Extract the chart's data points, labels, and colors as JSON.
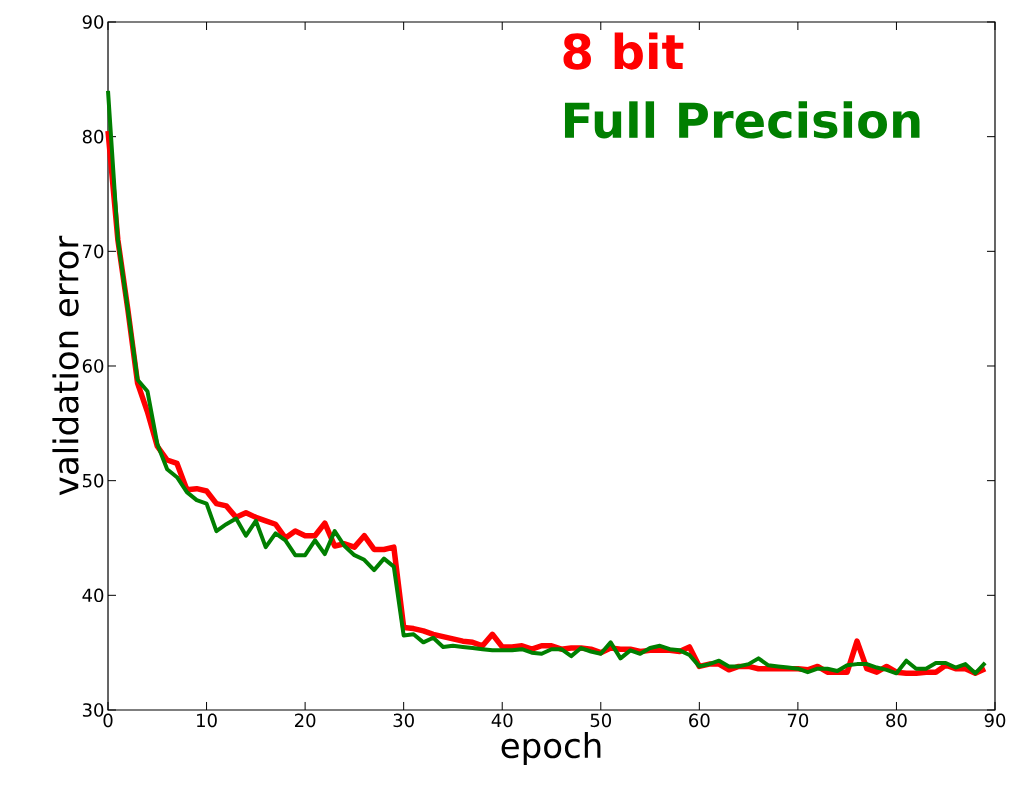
{
  "chart_data": {
    "type": "line",
    "xlabel": "epoch",
    "ylabel": "validation error",
    "xlim": [
      0,
      90
    ],
    "ylim": [
      30,
      90
    ],
    "xticks": [
      0,
      10,
      20,
      30,
      40,
      50,
      60,
      70,
      80,
      90
    ],
    "yticks": [
      30,
      40,
      50,
      60,
      70,
      80,
      90
    ],
    "grid": false,
    "legend": "top right",
    "marker": "none",
    "line_style": "solid",
    "x": [
      0,
      1,
      2,
      3,
      4,
      5,
      6,
      7,
      8,
      9,
      10,
      11,
      12,
      13,
      14,
      15,
      16,
      17,
      18,
      19,
      20,
      21,
      22,
      23,
      24,
      25,
      26,
      27,
      28,
      29,
      30,
      31,
      32,
      33,
      34,
      35,
      36,
      37,
      38,
      39,
      40,
      41,
      42,
      43,
      44,
      45,
      46,
      47,
      48,
      49,
      50,
      51,
      52,
      53,
      54,
      55,
      56,
      57,
      58,
      59,
      60,
      61,
      62,
      63,
      64,
      65,
      66,
      67,
      68,
      69,
      70,
      71,
      72,
      73,
      74,
      75,
      76,
      77,
      78,
      79,
      80,
      81,
      82,
      83,
      84,
      85,
      86,
      87,
      88,
      89
    ],
    "series": [
      {
        "name": "8 bit",
        "color": "#ff0000",
        "values": [
          80.5,
          71,
          65,
          58.5,
          56,
          53,
          51.8,
          51.5,
          49.2,
          49.3,
          49.1,
          48,
          47.8,
          46.8,
          47.2,
          46.8,
          46.5,
          46.2,
          45,
          45.6,
          45.2,
          45.2,
          46.3,
          44.3,
          44.5,
          44.2,
          45.2,
          44,
          44,
          44.2,
          37.2,
          37.1,
          36.9,
          36.6,
          36.4,
          36.2,
          36,
          35.9,
          35.6,
          36.6,
          35.5,
          35.5,
          35.6,
          35.3,
          35.6,
          35.6,
          35.3,
          35.4,
          35.4,
          35.3,
          35,
          35.4,
          35.3,
          35.3,
          35.1,
          35.2,
          35.2,
          35.2,
          35.1,
          35.5,
          33.8,
          34,
          34,
          33.5,
          33.8,
          33.8,
          33.6,
          33.6,
          33.6,
          33.6,
          33.6,
          33.5,
          33.8,
          33.3,
          33.3,
          33.3,
          36,
          33.6,
          33.3,
          33.8,
          33.3,
          33.2,
          33.2,
          33.3,
          33.3,
          33.9,
          33.6,
          33.6,
          33.2,
          33.6
        ]
      },
      {
        "name": "Full Precision",
        "color": "#007f00",
        "values": [
          84,
          71,
          65,
          58.8,
          57.8,
          53.2,
          51,
          50.3,
          49,
          48.3,
          48,
          45.6,
          46.2,
          46.7,
          45.2,
          46.5,
          44.2,
          45.4,
          44.8,
          43.5,
          43.5,
          44.8,
          43.6,
          45.6,
          44.3,
          43.5,
          43.1,
          42.2,
          43.2,
          42.5,
          36.5,
          36.6,
          35.9,
          36.3,
          35.5,
          35.6,
          35.5,
          35.4,
          35.3,
          35.2,
          35.2,
          35.2,
          35.3,
          35,
          34.9,
          35.3,
          35.3,
          34.7,
          35.4,
          35.1,
          34.9,
          35.9,
          34.5,
          35.2,
          34.9,
          35.4,
          35.6,
          35.3,
          35.2,
          34.8,
          33.8,
          34,
          34.3,
          33.8,
          33.8,
          34,
          34.5,
          33.9,
          33.8,
          33.7,
          33.6,
          33.3,
          33.6,
          33.6,
          33.4,
          33.9,
          34,
          34,
          33.7,
          33.5,
          33.2,
          34.3,
          33.6,
          33.6,
          34.1,
          34.1,
          33.7,
          34,
          33.2,
          34.1
        ]
      }
    ]
  }
}
